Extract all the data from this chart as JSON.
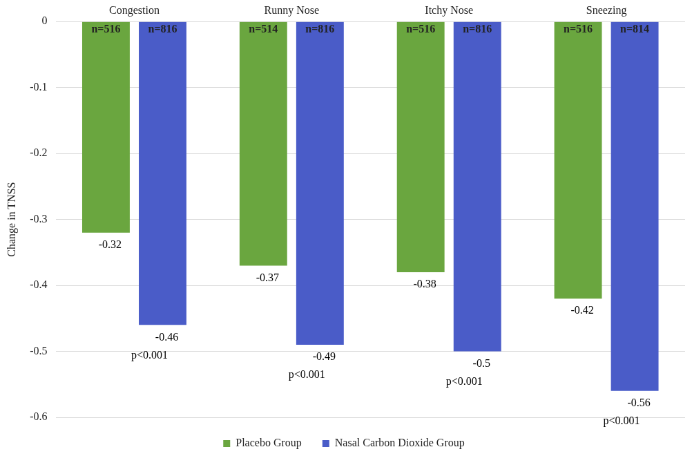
{
  "chart_data": {
    "type": "bar",
    "ylabel": "Change in TNSS",
    "categories": [
      "Congestion",
      "Runny Nose",
      "Itchy Nose",
      "Sneezing"
    ],
    "series": [
      {
        "name": "Placebo Group",
        "color": "#6aa63f",
        "values": [
          -0.32,
          -0.37,
          -0.38,
          -0.42
        ]
      },
      {
        "name": "Nasal Carbon Dioxide Group",
        "color": "#4a5cc8",
        "values": [
          -0.46,
          -0.49,
          -0.5,
          -0.56
        ]
      }
    ],
    "ylim": [
      -0.6,
      0
    ],
    "yticks": [
      -0.6,
      -0.5,
      -0.4,
      -0.3,
      -0.2,
      -0.1,
      0
    ],
    "grid": "y",
    "legend": "bottom",
    "data_labels": true,
    "annotations": [
      "n=516",
      "n=816",
      "n=514",
      "n=816",
      "n=516",
      "n=816",
      "n=516",
      "n=814",
      "p<0.001",
      "p<0.001",
      "p<0.001",
      "p<0.001"
    ]
  }
}
